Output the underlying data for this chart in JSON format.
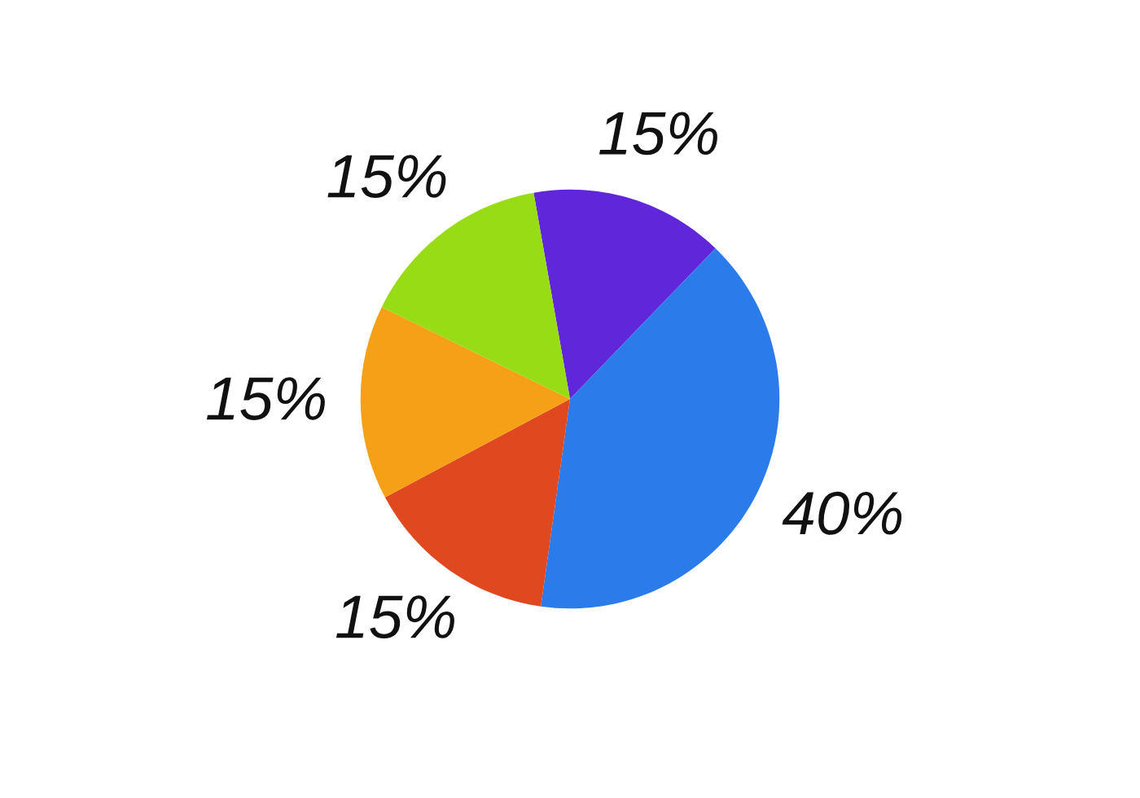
{
  "chart_data": {
    "type": "pie",
    "categories": [
      null,
      null,
      null,
      null,
      null
    ],
    "values": [
      15,
      40,
      15,
      15,
      15
    ],
    "colors": [
      "#5f27d9",
      "#2b7bea",
      "#e04820",
      "#f5a017",
      "#97dc14"
    ],
    "value_labels": [
      "15%",
      "40%",
      "15%",
      "15%",
      "15%"
    ]
  }
}
